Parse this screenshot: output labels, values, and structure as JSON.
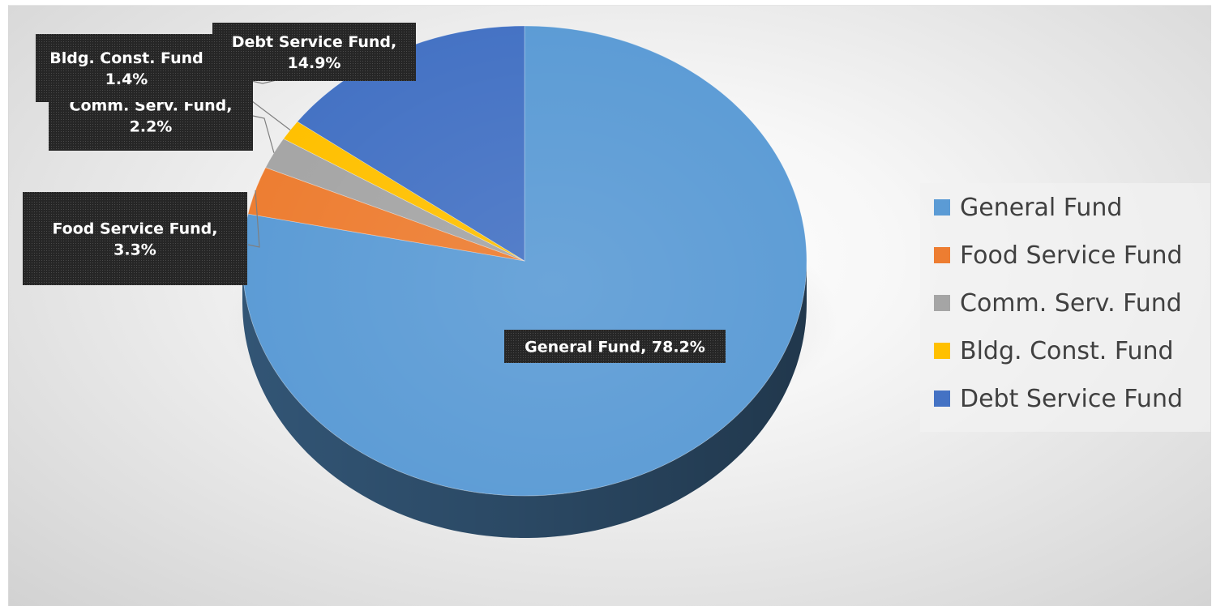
{
  "chart_data": {
    "type": "pie",
    "style": "3d",
    "categories": [
      "General Fund",
      "Food Service Fund",
      "Comm. Serv. Fund",
      "Bldg. Const. Fund",
      "Debt Service Fund"
    ],
    "values": [
      78.2,
      3.3,
      2.2,
      1.4,
      14.9
    ],
    "unit": "%",
    "colors": [
      "#5B9BD5",
      "#ED7D31",
      "#A5A5A5",
      "#FFC000",
      "#4472C4"
    ],
    "data_labels": [
      {
        "lines": [
          "General Fund, 78.2%"
        ]
      },
      {
        "lines": [
          "Food Service Fund,",
          "3.3%"
        ]
      },
      {
        "lines": [
          "Comm. Serv. Fund,",
          "2.2%"
        ]
      },
      {
        "lines": [
          "Bldg. Const. Fund",
          "1.4%"
        ]
      },
      {
        "lines": [
          "Debt Service Fund,",
          "14.9%"
        ]
      }
    ],
    "legend": {
      "position": "right",
      "entries": [
        "General Fund",
        "Food Service Fund",
        "Comm. Serv. Fund",
        "Bldg. Const. Fund",
        "Debt Service Fund"
      ]
    }
  }
}
